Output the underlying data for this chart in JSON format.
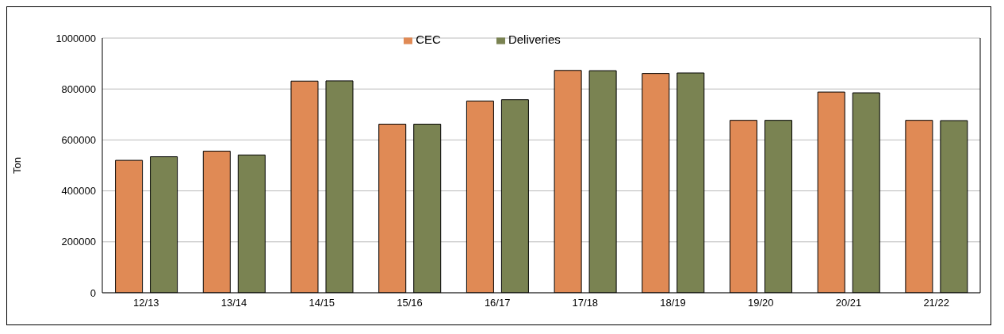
{
  "chart_data": {
    "type": "bar",
    "ylabel": "Ton",
    "categories": [
      "12/13",
      "13/14",
      "14/15",
      "15/16",
      "16/17",
      "17/18",
      "18/19",
      "19/20",
      "20/21",
      "21/22"
    ],
    "series": [
      {
        "name": "CEC",
        "color": "#e08a55",
        "values": [
          520000,
          556000,
          831000,
          662000,
          753000,
          873000,
          861000,
          677000,
          788000,
          677000
        ]
      },
      {
        "name": "Deliveries",
        "color": "#7a8352",
        "values": [
          534000,
          541000,
          832000,
          662000,
          758000,
          872000,
          863000,
          677000,
          785000,
          676000
        ]
      }
    ],
    "ylim": [
      0,
      1000000
    ],
    "yticks": [
      0,
      200000,
      400000,
      600000,
      800000,
      1000000
    ],
    "grid": "y",
    "legend": "top"
  }
}
